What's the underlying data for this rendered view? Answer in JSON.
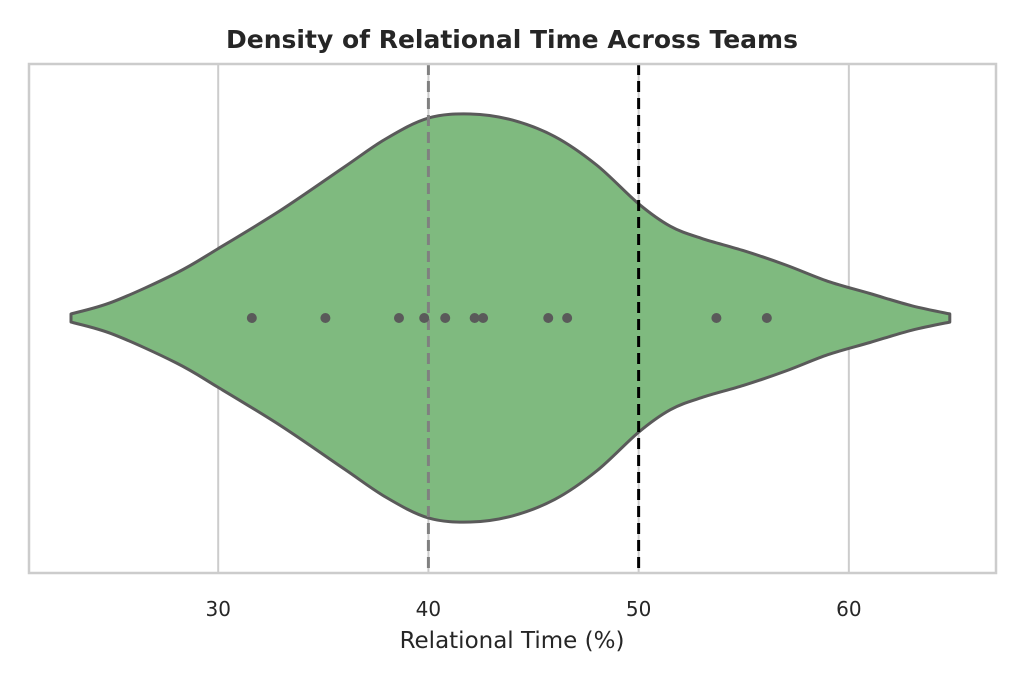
{
  "chart_data": {
    "type": "violin",
    "title": "Density of Relational Time Across Teams",
    "xlabel": "Relational Time (%)",
    "ylabel": "",
    "xlim": [
      21,
      67
    ],
    "xticks": [
      30,
      40,
      50,
      60
    ],
    "grid": "vertical",
    "violin_extent": [
      23,
      64.8
    ],
    "density_profile": [
      [
        23.0,
        0.02
      ],
      [
        25.0,
        0.08
      ],
      [
        28.0,
        0.22
      ],
      [
        30.0,
        0.34
      ],
      [
        33.0,
        0.53
      ],
      [
        36.0,
        0.74
      ],
      [
        38.0,
        0.88
      ],
      [
        40.0,
        0.98
      ],
      [
        42.0,
        1.0
      ],
      [
        44.0,
        0.97
      ],
      [
        46.0,
        0.89
      ],
      [
        48.0,
        0.75
      ],
      [
        50.0,
        0.56
      ],
      [
        51.5,
        0.45
      ],
      [
        53.0,
        0.39
      ],
      [
        55.0,
        0.33
      ],
      [
        57.0,
        0.26
      ],
      [
        59.0,
        0.18
      ],
      [
        61.0,
        0.12
      ],
      [
        63.0,
        0.06
      ],
      [
        64.8,
        0.02
      ]
    ],
    "points": [
      31.6,
      35.1,
      38.6,
      39.8,
      40.8,
      42.2,
      42.6,
      45.7,
      46.6,
      53.7,
      56.1
    ],
    "reference_lines": [
      {
        "x": 40,
        "style": "dashed",
        "color": "#808080"
      },
      {
        "x": 50,
        "style": "dashed",
        "color": "#000000"
      }
    ],
    "colors": {
      "violin_fill": "#7fba7f",
      "violin_stroke": "#5a5a5a",
      "points": "#5a5a5a",
      "grid": "#cccccc",
      "frame": "#cccccc"
    }
  }
}
